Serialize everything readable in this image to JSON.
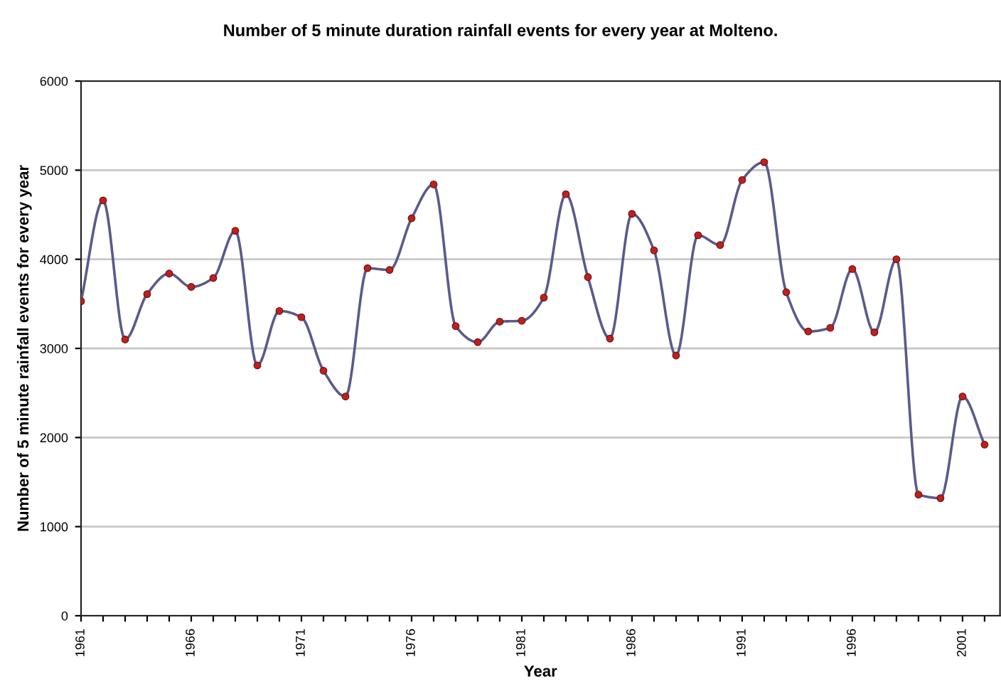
{
  "chart_data": {
    "type": "line",
    "title": "Number of 5 minute duration rainfall events for every year at Molteno.",
    "xlabel": "Year",
    "ylabel": "Number of 5 minute rainfall events for every year",
    "x": [
      1961,
      1962,
      1963,
      1964,
      1965,
      1966,
      1967,
      1968,
      1969,
      1970,
      1971,
      1972,
      1973,
      1974,
      1975,
      1976,
      1977,
      1978,
      1979,
      1980,
      1981,
      1982,
      1983,
      1984,
      1985,
      1986,
      1987,
      1988,
      1989,
      1990,
      1991,
      1992,
      1993,
      1994,
      1995,
      1996,
      1997,
      1998,
      1999,
      2000,
      2001,
      2002
    ],
    "series": [
      {
        "color": "#5a5a8e",
        "colors": [
          "#c0201c",
          "#c0201c",
          "#c0201c",
          "#c0201c",
          "#c0201c",
          "#c0201c",
          "#c0201c",
          "#c0201c",
          "#c0201c",
          "#c0201c",
          "#c0201c",
          "#c0201c",
          "#c0201c",
          "#c0201c",
          "#c0201c",
          "#c0201c",
          "#c0201c",
          "#c0201c",
          "#c0201c",
          "#c0201c",
          "#c0201c",
          "#c0201c",
          "#c0201c",
          "#c0201c",
          "#c0201c",
          "#c0201c",
          "#c0201c",
          "#c0201c",
          "#c0201c",
          "#c0201c",
          "#c0201c",
          "#c0201c",
          "#c0201c",
          "#c0201c",
          "#c0201c",
          "#c0201c",
          "#c0201c",
          "#c0201c",
          "#c0201c",
          "#c0201c",
          "#c0201c",
          "#c0201c"
        ],
        "values": [
          3530,
          4660,
          3100,
          3610,
          3840,
          3690,
          3790,
          4320,
          2810,
          3420,
          3350,
          2750,
          2460,
          3900,
          3880,
          4460,
          4840,
          3250,
          3070,
          3300,
          3310,
          3570,
          4730,
          3800,
          3110,
          4510,
          4100,
          2920,
          4270,
          4160,
          4890,
          5090,
          3630,
          3190,
          3230,
          3890,
          3180,
          4000,
          1360,
          1320,
          2460,
          1920
        ]
      }
    ],
    "xlim": [
      1961,
      2002.7
    ],
    "xticks": [
      1961,
      {
        "value": 1962,
        "label": null
      },
      {
        "value": 1963,
        "label": null
      },
      {
        "value": 1964,
        "label": null
      },
      {
        "value": 1965,
        "label": null
      },
      1966,
      {
        "value": 1967,
        "label": null
      },
      {
        "value": 1968,
        "label": null
      },
      {
        "value": 1969,
        "label": null
      },
      {
        "value": 1970,
        "label": null
      },
      1971,
      {
        "value": 1972,
        "label": null
      },
      {
        "value": 1973,
        "label": null
      },
      {
        "value": 1974,
        "label": null
      },
      {
        "value": 1975,
        "label": null
      },
      1976,
      {
        "value": 1977,
        "label": null
      },
      {
        "value": 1978,
        "label": null
      },
      {
        "value": 1979,
        "label": null
      },
      {
        "value": 1980,
        "label": null
      },
      1981,
      {
        "value": 1982,
        "label": null
      },
      {
        "value": 1983,
        "label": null
      },
      {
        "value": 1984,
        "label": null
      },
      {
        "value": 1985,
        "label": null
      },
      1986,
      {
        "value": 1987,
        "label": null
      },
      {
        "value": 1988,
        "label": null
      },
      {
        "value": 1989,
        "label": null
      },
      {
        "value": 1990,
        "label": null
      },
      1991,
      {
        "value": 1992,
        "label": null
      },
      {
        "value": 1993,
        "label": null
      },
      {
        "value": 1994,
        "label": null
      },
      {
        "value": 1995,
        "label": null
      },
      1996,
      {
        "value": 1997,
        "label": null
      },
      {
        "value": 1998,
        "label": null
      },
      {
        "value": 1999,
        "label": null
      },
      {
        "value": 2000,
        "label": null
      },
      2001,
      {
        "value": 2002,
        "label": null
      }
    ],
    "ylim": [
      0,
      6000
    ],
    "yticks": [
      0,
      1000,
      2000,
      3000,
      4000,
      5000,
      6000
    ],
    "grid": "y",
    "marker": "circle",
    "line_style": "solid",
    "legend": false
  }
}
